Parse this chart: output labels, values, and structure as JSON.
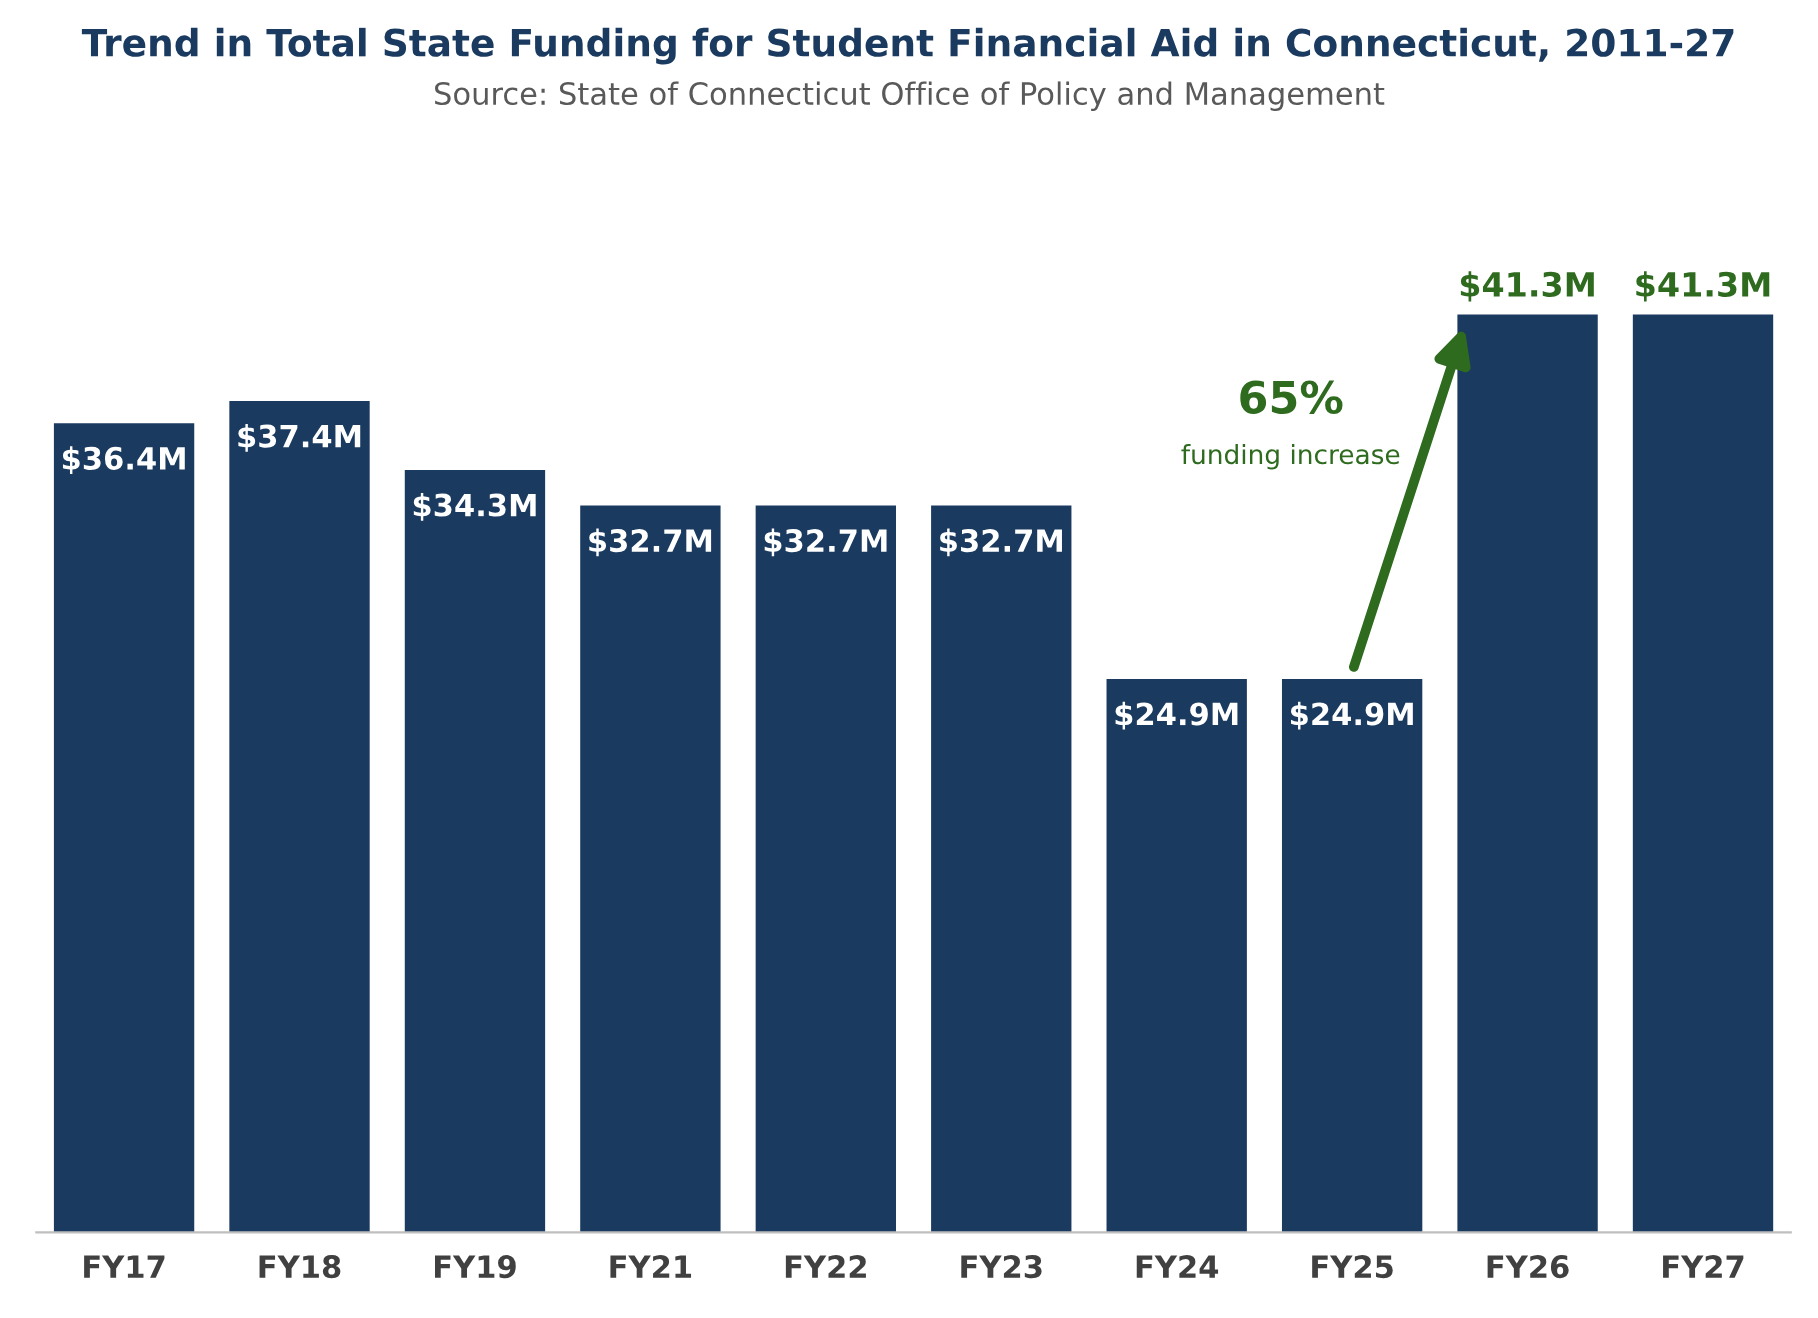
{
  "chart_data": {
    "type": "bar",
    "title": "Trend in Total State Funding for Student Financial Aid in Connecticut, 2011-27",
    "subtitle": "Source: State of Connecticut Office of Policy and Management",
    "categories": [
      "FY17",
      "FY18",
      "FY19",
      "FY21",
      "FY22",
      "FY23",
      "FY24",
      "FY25",
      "FY26",
      "FY27"
    ],
    "values": [
      36.4,
      37.4,
      34.3,
      32.7,
      32.7,
      32.7,
      24.9,
      24.9,
      41.3,
      41.3
    ],
    "value_labels": [
      "$36.4M",
      "$37.4M",
      "$34.3M",
      "$32.7M",
      "$32.7M",
      "$32.7M",
      "$24.9M",
      "$24.9M",
      "$41.3M",
      "$41.3M"
    ],
    "color": "#1a3a5f",
    "annotations": [
      "65%",
      "funding increase"
    ],
    "grid": false,
    "legend": false
  }
}
